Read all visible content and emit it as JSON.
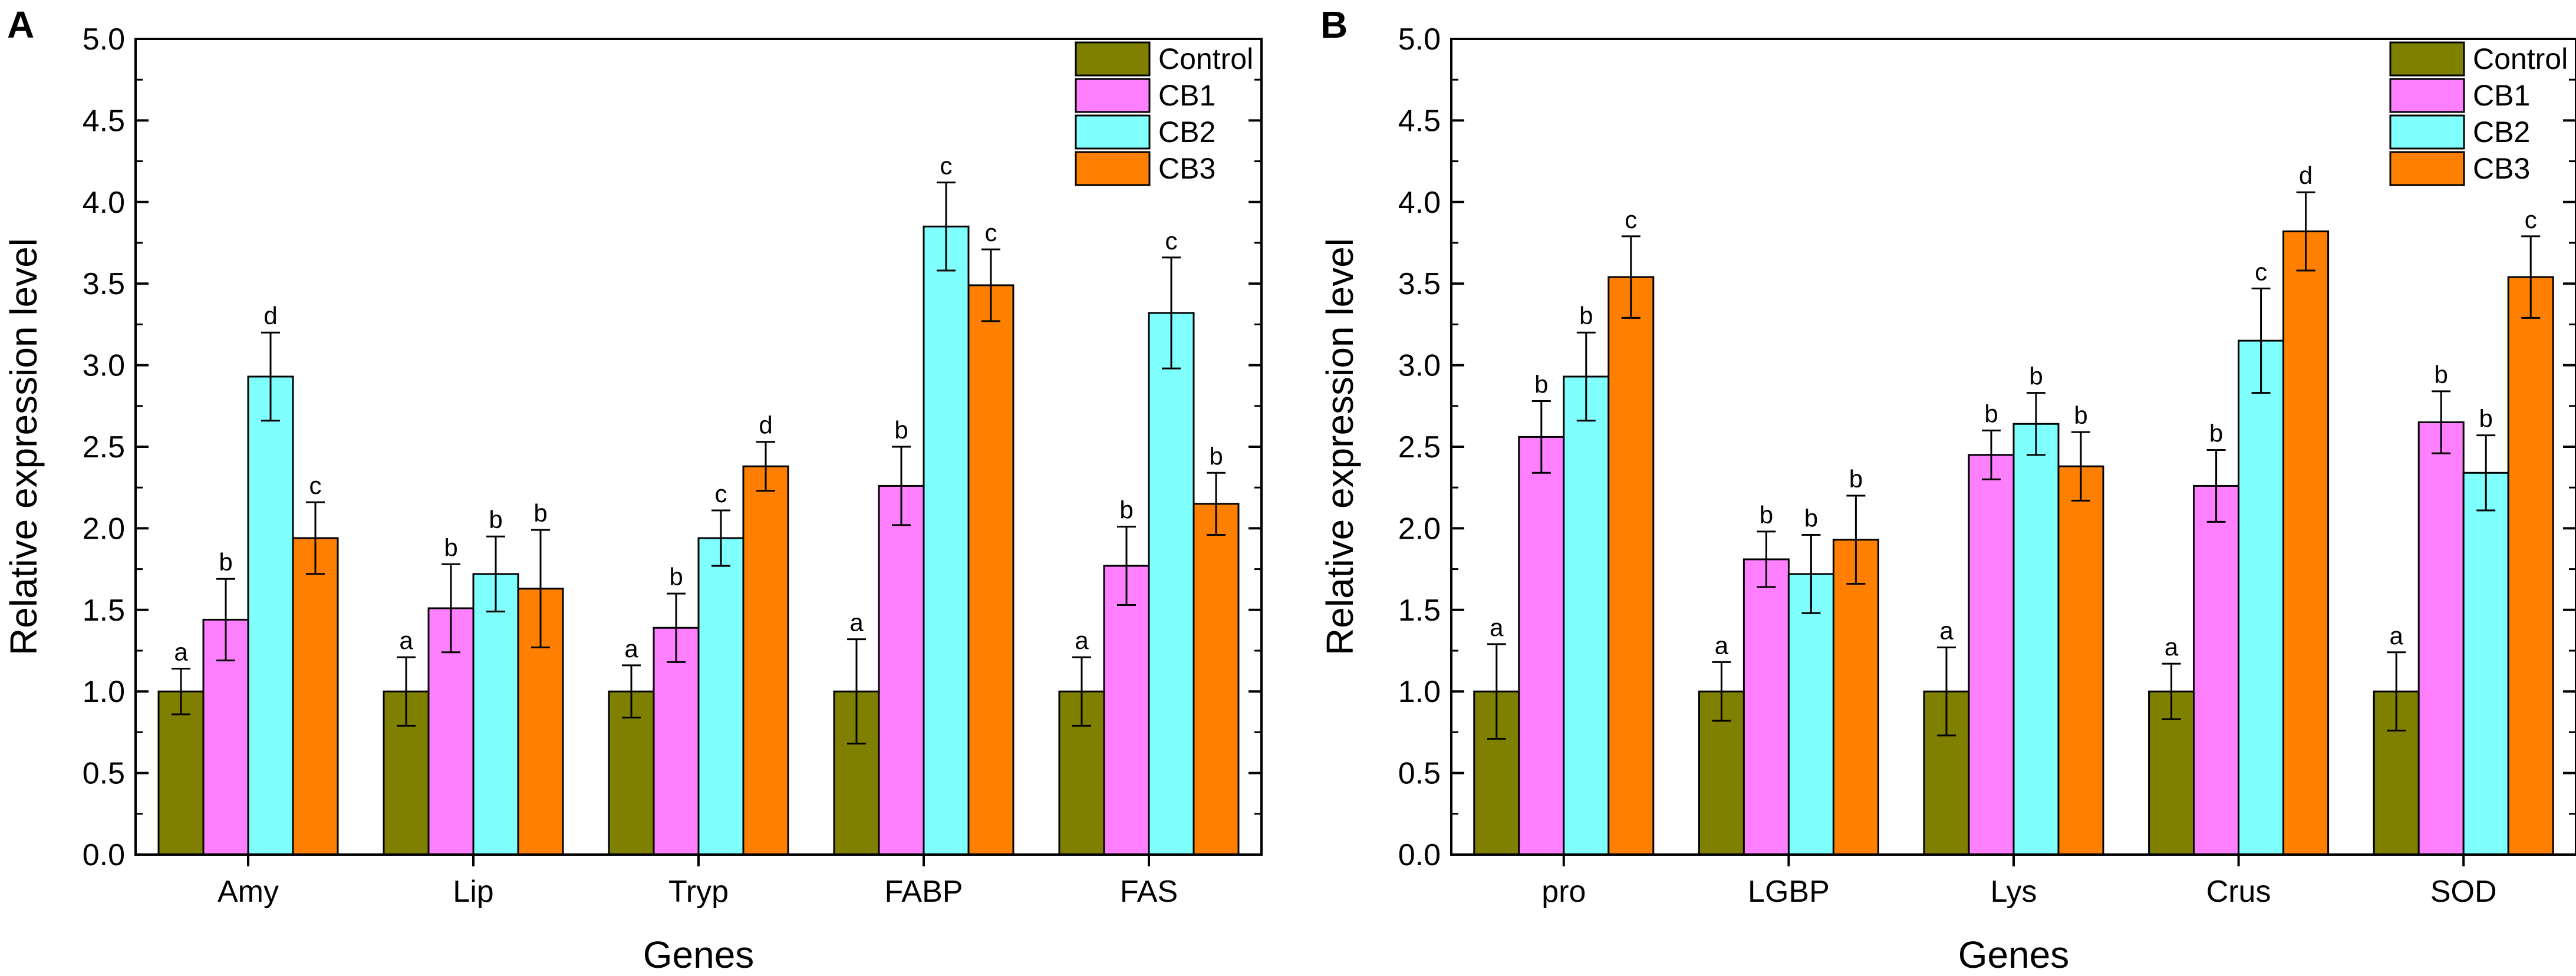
{
  "colors": {
    "Control": "#808000",
    "CB1": "#ff80ff",
    "CB2": "#80ffff",
    "CB3": "#ff8000"
  },
  "chart_data": [
    {
      "type": "bar",
      "panel": "A",
      "xlabel": "Genes",
      "ylabel": "Relative expression level",
      "ylim": [
        0,
        5
      ],
      "yticks": [
        "0.0",
        "0.5",
        "1.0",
        "1.5",
        "2.0",
        "2.5",
        "3.0",
        "3.5",
        "4.0",
        "4.5",
        "5.0"
      ],
      "legend_position": "top-right",
      "categories": [
        "Amy",
        "Lip",
        "Tryp",
        "FABP",
        "FAS"
      ],
      "series": [
        {
          "name": "Control",
          "values": [
            1.0,
            1.0,
            1.0,
            1.0,
            1.0
          ],
          "errors": [
            0.14,
            0.21,
            0.16,
            0.32,
            0.21
          ],
          "labels": [
            "a",
            "a",
            "a",
            "a",
            "a"
          ]
        },
        {
          "name": "CB1",
          "values": [
            1.44,
            1.51,
            1.39,
            2.26,
            1.77
          ],
          "errors": [
            0.25,
            0.27,
            0.21,
            0.24,
            0.24
          ],
          "labels": [
            "b",
            "b",
            "b",
            "b",
            "b"
          ]
        },
        {
          "name": "CB2",
          "values": [
            2.93,
            1.72,
            1.94,
            3.85,
            3.32
          ],
          "errors": [
            0.27,
            0.23,
            0.17,
            0.27,
            0.34
          ],
          "labels": [
            "d",
            "b",
            "c",
            "c",
            "c"
          ]
        },
        {
          "name": "CB3",
          "values": [
            1.94,
            1.63,
            2.38,
            3.49,
            2.15
          ],
          "errors": [
            0.22,
            0.36,
            0.15,
            0.22,
            0.19
          ],
          "labels": [
            "c",
            "b",
            "d",
            "c",
            "b"
          ]
        }
      ]
    },
    {
      "type": "bar",
      "panel": "B",
      "xlabel": "Genes",
      "ylabel": "Relative expression level",
      "ylim": [
        0,
        5
      ],
      "yticks": [
        "0.0",
        "0.5",
        "1.0",
        "1.5",
        "2.0",
        "2.5",
        "3.0",
        "3.5",
        "4.0",
        "4.5",
        "5.0"
      ],
      "legend_position": "top-right",
      "categories": [
        "pro",
        "LGBP",
        "Lys",
        "Crus",
        "SOD"
      ],
      "series": [
        {
          "name": "Control",
          "values": [
            1.0,
            1.0,
            1.0,
            1.0,
            1.0
          ],
          "errors": [
            0.29,
            0.18,
            0.27,
            0.17,
            0.24
          ],
          "labels": [
            "a",
            "a",
            "a",
            "a",
            "a"
          ]
        },
        {
          "name": "CB1",
          "values": [
            2.56,
            1.81,
            2.45,
            2.26,
            2.65
          ],
          "errors": [
            0.22,
            0.17,
            0.15,
            0.22,
            0.19
          ],
          "labels": [
            "b",
            "b",
            "b",
            "b",
            "b"
          ]
        },
        {
          "name": "CB2",
          "values": [
            2.93,
            1.72,
            2.64,
            3.15,
            2.34
          ],
          "errors": [
            0.27,
            0.24,
            0.19,
            0.32,
            0.23
          ],
          "labels": [
            "b",
            "b",
            "b",
            "c",
            "b"
          ]
        },
        {
          "name": "CB3",
          "values": [
            3.54,
            1.93,
            2.38,
            3.82,
            3.54
          ],
          "errors": [
            0.25,
            0.27,
            0.21,
            0.24,
            0.25
          ],
          "labels": [
            "c",
            "b",
            "b",
            "d",
            "c"
          ]
        }
      ]
    }
  ]
}
